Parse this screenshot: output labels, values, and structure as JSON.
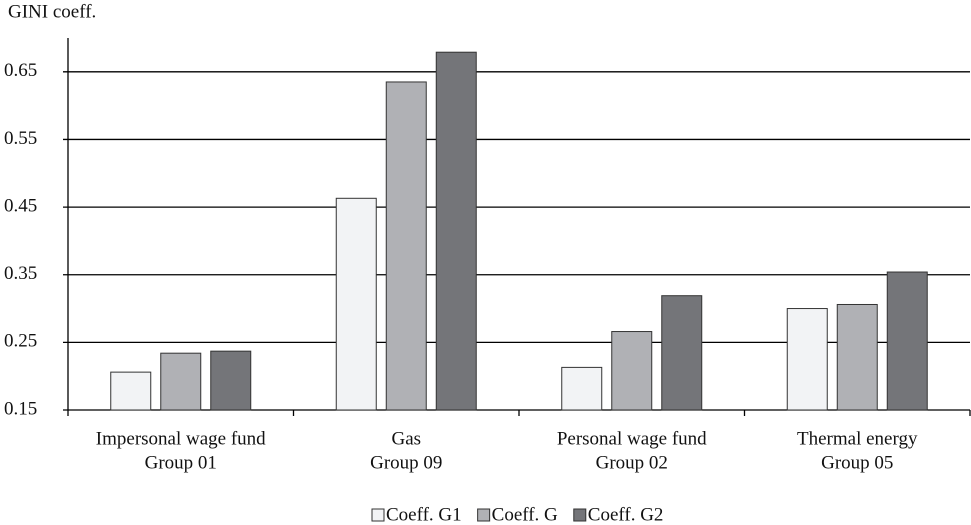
{
  "chart_data": {
    "type": "bar",
    "y_label": "GINI coeff.",
    "categories": [
      [
        "Impersonal wage fund",
        "Group 01"
      ],
      [
        "Gas",
        "Group 09"
      ],
      [
        "Personal wage fund",
        "Group 02"
      ],
      [
        "Thermal energy",
        "Group 05"
      ]
    ],
    "series": [
      {
        "name": "Coeff. G1",
        "color": "#f2f3f5",
        "values": [
          0.206,
          0.463,
          0.213,
          0.3
        ]
      },
      {
        "name": "Coeff. G",
        "color": "#b0b1b5",
        "values": [
          0.234,
          0.635,
          0.266,
          0.306
        ]
      },
      {
        "name": "Coeff. G2",
        "color": "#747579",
        "values": [
          0.237,
          0.679,
          0.319,
          0.354
        ]
      }
    ],
    "ylim": [
      0.15,
      0.7
    ],
    "yticks": [
      0.15,
      0.25,
      0.35,
      0.45,
      0.55,
      0.65
    ],
    "grid": true,
    "legend": "bottom"
  }
}
